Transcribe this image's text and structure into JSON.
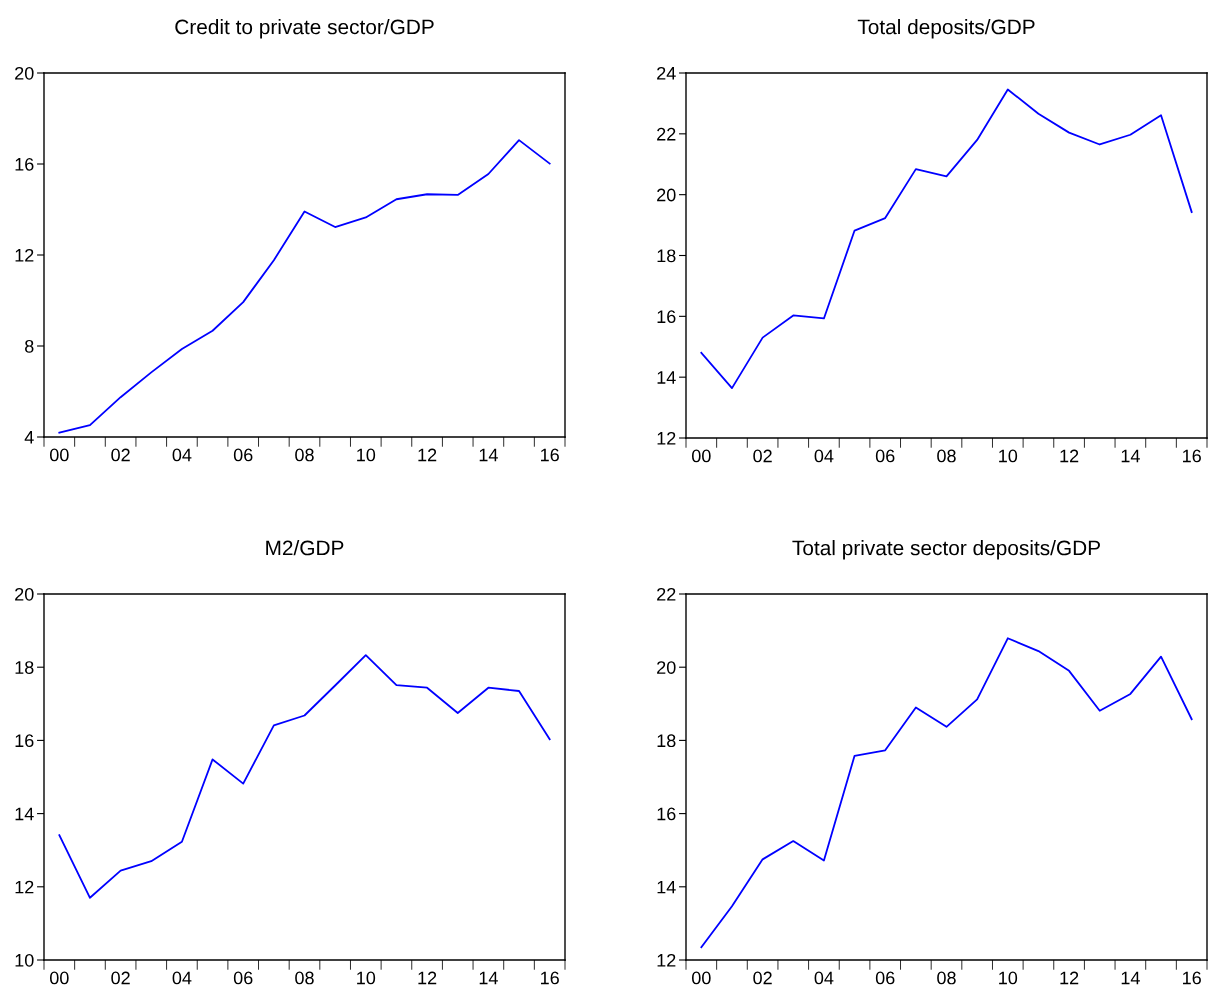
{
  "chart_data": [
    {
      "type": "line",
      "title": "Credit to private sector/GDP",
      "categories": [
        "00",
        null,
        "02",
        null,
        "04",
        null,
        "06",
        null,
        "08",
        null,
        "10",
        null,
        "12",
        null,
        "14",
        null,
        "16"
      ],
      "ylim": [
        4,
        20
      ],
      "yticks": [
        4,
        8,
        12,
        16,
        20
      ],
      "grid": false,
      "legend": false,
      "series": [
        {
          "color": "#0000ff",
          "values": [
            4.19,
            4.52,
            5.75,
            6.84,
            7.87,
            8.67,
            9.93,
            11.77,
            13.91,
            13.23,
            13.65,
            14.45,
            14.67,
            14.64,
            15.56,
            17.05,
            16.02
          ]
        }
      ]
    },
    {
      "type": "line",
      "title": "Total deposits/GDP",
      "categories": [
        "00",
        null,
        "02",
        null,
        "04",
        null,
        "06",
        null,
        "08",
        null,
        "10",
        null,
        "12",
        null,
        "14",
        null,
        "16"
      ],
      "ylim": [
        12,
        24
      ],
      "yticks": [
        12,
        14,
        16,
        18,
        20,
        22,
        24
      ],
      "grid": false,
      "legend": false,
      "series": [
        {
          "color": "#0000ff",
          "values": [
            14.8,
            13.64,
            15.3,
            16.03,
            15.93,
            18.82,
            19.23,
            20.84,
            20.6,
            21.8,
            23.46,
            22.66,
            22.04,
            21.65,
            21.97,
            22.61,
            19.43
          ]
        }
      ]
    },
    {
      "type": "line",
      "title": "M2/GDP",
      "categories": [
        "00",
        null,
        "02",
        null,
        "04",
        null,
        "06",
        null,
        "08",
        null,
        "10",
        null,
        "12",
        null,
        "14",
        null,
        "16"
      ],
      "ylim": [
        10,
        20
      ],
      "yticks": [
        10,
        12,
        14,
        16,
        18,
        20
      ],
      "grid": false,
      "legend": false,
      "series": [
        {
          "color": "#0000ff",
          "values": [
            13.41,
            11.7,
            12.44,
            12.7,
            13.23,
            15.48,
            14.82,
            16.41,
            16.68,
            17.5,
            18.33,
            17.51,
            17.44,
            16.75,
            17.44,
            17.35,
            16.03
          ]
        }
      ]
    },
    {
      "type": "line",
      "title": "Total private sector deposits/GDP",
      "categories": [
        "00",
        null,
        "02",
        null,
        "04",
        null,
        "06",
        null,
        "08",
        null,
        "10",
        null,
        "12",
        null,
        "14",
        null,
        "16"
      ],
      "ylim": [
        12,
        22
      ],
      "yticks": [
        12,
        14,
        16,
        18,
        20,
        22
      ],
      "grid": false,
      "legend": false,
      "series": [
        {
          "color": "#0000ff",
          "values": [
            12.35,
            13.47,
            14.75,
            15.25,
            14.72,
            17.58,
            17.73,
            18.9,
            18.37,
            19.12,
            20.79,
            20.44,
            19.9,
            18.81,
            19.27,
            20.29,
            18.58
          ]
        }
      ]
    }
  ]
}
